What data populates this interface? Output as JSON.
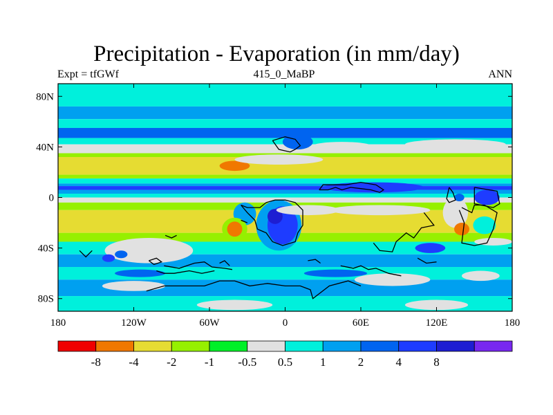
{
  "title": "Precipitation - Evaporation (in mm/day)",
  "subtitle_left": "Expt = tfGWf",
  "subtitle_center": "415_0_MaBP",
  "subtitle_right": "ANN",
  "map": {
    "projection": "cylindrical-equidistant",
    "lon_range": [
      -180,
      180
    ],
    "lat_range": [
      -90,
      90
    ],
    "x_ticks": [
      {
        "value": -180,
        "label": "180"
      },
      {
        "value": -120,
        "label": "120W"
      },
      {
        "value": -60,
        "label": "60W"
      },
      {
        "value": 0,
        "label": "0"
      },
      {
        "value": 60,
        "label": "60E"
      },
      {
        "value": 120,
        "label": "120E"
      },
      {
        "value": 180,
        "label": "180"
      }
    ],
    "y_ticks": [
      {
        "value": 80,
        "label": "80N"
      },
      {
        "value": 40,
        "label": "40N"
      },
      {
        "value": 0,
        "label": "0"
      },
      {
        "value": -40,
        "label": "40S"
      },
      {
        "value": -80,
        "label": "80S"
      }
    ],
    "zonal_bands": [
      {
        "lat": [
          72,
          90
        ],
        "color": "#00f0dc"
      },
      {
        "lat": [
          62,
          72
        ],
        "color": "#00a0f0"
      },
      {
        "lat": [
          55,
          62
        ],
        "color": "#00f0dc"
      },
      {
        "lat": [
          47,
          55
        ],
        "color": "#0064f0"
      },
      {
        "lat": [
          42,
          47
        ],
        "color": "#00f0dc"
      },
      {
        "lat": [
          35,
          42
        ],
        "color": "#e1e1e1"
      },
      {
        "lat": [
          32,
          35
        ],
        "color": "#96f000"
      },
      {
        "lat": [
          18,
          32
        ],
        "color": "#e6dc32"
      },
      {
        "lat": [
          15,
          18
        ],
        "color": "#96f000"
      },
      {
        "lat": [
          11,
          15
        ],
        "color": "#00f0dc"
      },
      {
        "lat": [
          9,
          11
        ],
        "color": "#00a0f0"
      },
      {
        "lat": [
          6,
          9
        ],
        "color": "#1e3cff"
      },
      {
        "lat": [
          3,
          6
        ],
        "color": "#00a0f0"
      },
      {
        "lat": [
          0,
          3
        ],
        "color": "#00f0dc"
      },
      {
        "lat": [
          -4,
          0
        ],
        "color": "#e1e1e1"
      },
      {
        "lat": [
          -10,
          -4
        ],
        "color": "#96f000"
      },
      {
        "lat": [
          -28,
          -10
        ],
        "color": "#e6dc32"
      },
      {
        "lat": [
          -35,
          -28
        ],
        "color": "#96f000"
      },
      {
        "lat": [
          -45,
          -35
        ],
        "color": "#00f0dc"
      },
      {
        "lat": [
          -55,
          -45
        ],
        "color": "#00a0f0"
      },
      {
        "lat": [
          -65,
          -55
        ],
        "color": "#00f0dc"
      },
      {
        "lat": [
          -78,
          -65
        ],
        "color": "#00a0f0"
      },
      {
        "lat": [
          -90,
          -78
        ],
        "color": "#00f0dc"
      }
    ],
    "regions": [
      {
        "kind": "ellipse",
        "lon": -108,
        "lat": -42,
        "rlon": 35,
        "rlat": 10,
        "color": "#e1e1e1"
      },
      {
        "kind": "ellipse",
        "lon": -40,
        "lat": 25,
        "rlon": 12,
        "rlat": 4,
        "color": "#f07800"
      },
      {
        "kind": "ellipse",
        "lon": -5,
        "lat": 30,
        "rlon": 35,
        "rlat": 4,
        "color": "#e1e1e1"
      },
      {
        "kind": "ellipse",
        "lon": 10,
        "lat": 44,
        "rlon": 12,
        "rlat": 6,
        "color": "#0064f0"
      },
      {
        "kind": "ellipse",
        "lon": 45,
        "lat": 40,
        "rlon": 25,
        "rlat": 4,
        "color": "#e1e1e1"
      },
      {
        "kind": "ellipse",
        "lon": 135,
        "lat": 42,
        "rlon": 40,
        "rlat": 4,
        "color": "#e1e1e1"
      },
      {
        "kind": "ellipse",
        "lon": 70,
        "lat": 8,
        "rlon": 40,
        "rlat": 4,
        "color": "#1e3cff"
      },
      {
        "kind": "ellipse",
        "lon": -5,
        "lat": -22,
        "rlon": 18,
        "rlat": 20,
        "color": "#00a0f0"
      },
      {
        "kind": "ellipse",
        "lon": -2,
        "lat": -22,
        "rlon": 12,
        "rlat": 15,
        "color": "#1e3cff"
      },
      {
        "kind": "ellipse",
        "lon": -8,
        "lat": -15,
        "rlon": 6,
        "rlat": 6,
        "color": "#1e1ed2"
      },
      {
        "kind": "ellipse",
        "lon": -32,
        "lat": -13,
        "rlon": 9,
        "rlat": 9,
        "color": "#00a0f0"
      },
      {
        "kind": "ellipse",
        "lon": -40,
        "lat": -25,
        "rlon": 10,
        "rlat": 9,
        "color": "#96f000"
      },
      {
        "kind": "ellipse",
        "lon": -40,
        "lat": -25,
        "rlon": 6,
        "rlat": 6,
        "color": "#f07800"
      },
      {
        "kind": "ellipse",
        "lon": 18,
        "lat": -10,
        "rlon": 25,
        "rlat": 4,
        "color": "#e1e1e1"
      },
      {
        "kind": "ellipse",
        "lon": 75,
        "lat": -10,
        "rlon": 40,
        "rlat": 4,
        "color": "#e1e1e1"
      },
      {
        "kind": "ellipse",
        "lon": 135,
        "lat": -12,
        "rlon": 10,
        "rlat": 12,
        "color": "#e1e1e1"
      },
      {
        "kind": "ellipse",
        "lon": 138,
        "lat": 0,
        "rlon": 4,
        "rlat": 3,
        "color": "#0064f0"
      },
      {
        "kind": "ellipse",
        "lon": 160,
        "lat": 0,
        "rlon": 10,
        "rlat": 6,
        "color": "#1e3cff"
      },
      {
        "kind": "ellipse",
        "lon": 158,
        "lat": -22,
        "rlon": 9,
        "rlat": 7,
        "color": "#00f0dc"
      },
      {
        "kind": "ellipse",
        "lon": 140,
        "lat": -25,
        "rlon": 6,
        "rlat": 5,
        "color": "#f07800"
      },
      {
        "kind": "ellipse",
        "lon": 115,
        "lat": -40,
        "rlon": 12,
        "rlat": 4,
        "color": "#1e3cff"
      },
      {
        "kind": "ellipse",
        "lon": 165,
        "lat": -35,
        "rlon": 15,
        "rlat": 3,
        "color": "#e1e1e1"
      },
      {
        "kind": "ellipse",
        "lon": -140,
        "lat": -48,
        "rlon": 5,
        "rlat": 3,
        "color": "#1e3cff"
      },
      {
        "kind": "ellipse",
        "lon": -130,
        "lat": -45,
        "rlon": 5,
        "rlat": 3,
        "color": "#0064f0"
      },
      {
        "kind": "ellipse",
        "lon": -115,
        "lat": -60,
        "rlon": 20,
        "rlat": 3,
        "color": "#0064f0"
      },
      {
        "kind": "ellipse",
        "lon": 40,
        "lat": -60,
        "rlon": 25,
        "rlat": 3,
        "color": "#0064f0"
      },
      {
        "kind": "ellipse",
        "lon": 85,
        "lat": -65,
        "rlon": 30,
        "rlat": 5,
        "color": "#e1e1e1"
      },
      {
        "kind": "ellipse",
        "lon": 155,
        "lat": -62,
        "rlon": 15,
        "rlat": 4,
        "color": "#e1e1e1"
      },
      {
        "kind": "ellipse",
        "lon": -120,
        "lat": -70,
        "rlon": 25,
        "rlat": 4,
        "color": "#e1e1e1"
      },
      {
        "kind": "ellipse",
        "lon": 120,
        "lat": -85,
        "rlon": 25,
        "rlat": 4,
        "color": "#e1e1e1"
      },
      {
        "kind": "ellipse",
        "lon": -40,
        "lat": -85,
        "rlon": 30,
        "rlat": 4,
        "color": "#e1e1e1"
      }
    ],
    "coastlines": [
      [
        [
          -35,
          -6
        ],
        [
          -30,
          -8
        ],
        [
          -20,
          -8
        ],
        [
          -15,
          -4
        ],
        [
          -8,
          -2
        ],
        [
          0,
          -2
        ],
        [
          8,
          -4
        ],
        [
          14,
          -10
        ],
        [
          14,
          -22
        ],
        [
          10,
          -28
        ],
        [
          8,
          -35
        ],
        [
          -2,
          -38
        ],
        [
          -10,
          -35
        ],
        [
          -15,
          -28
        ],
        [
          -22,
          -25
        ],
        [
          -24,
          -18
        ],
        [
          -30,
          -12
        ],
        [
          -35,
          -6
        ]
      ],
      [
        [
          -35,
          -18
        ],
        [
          -30,
          -20
        ]
      ],
      [
        [
          -10,
          45
        ],
        [
          0,
          48
        ],
        [
          8,
          46
        ],
        [
          12,
          41
        ],
        [
          8,
          38
        ],
        [
          4,
          36
        ],
        [
          -5,
          38
        ],
        [
          -10,
          45
        ]
      ],
      [
        [
          27,
          6
        ],
        [
          34,
          6
        ],
        [
          40,
          8
        ],
        [
          45,
          6
        ],
        [
          52,
          8
        ],
        [
          60,
          7
        ],
        [
          68,
          6
        ],
        [
          75,
          4
        ],
        [
          78,
          6
        ],
        [
          72,
          10
        ],
        [
          60,
          12
        ],
        [
          48,
          10
        ],
        [
          38,
          10
        ],
        [
          30,
          10
        ],
        [
          27,
          6
        ]
      ],
      [
        [
          130,
          8
        ],
        [
          128,
          -1
        ],
        [
          130,
          -4
        ],
        [
          135,
          -2
        ],
        [
          133,
          4
        ],
        [
          130,
          8
        ]
      ],
      [
        [
          150,
          8
        ],
        [
          150,
          -5
        ],
        [
          165,
          -8
        ],
        [
          170,
          -5
        ],
        [
          168,
          5
        ],
        [
          150,
          8
        ]
      ],
      [
        [
          138,
          -10
        ],
        [
          142,
          -20
        ],
        [
          140,
          -36
        ],
        [
          150,
          -38
        ],
        [
          160,
          -36
        ],
        [
          165,
          -25
        ],
        [
          168,
          -12
        ],
        [
          158,
          -6
        ],
        [
          150,
          -6
        ],
        [
          148,
          -12
        ],
        [
          140,
          -8
        ]
      ],
      [
        [
          110,
          -12
        ],
        [
          118,
          -22
        ],
        [
          108,
          -24
        ],
        [
          102,
          -32
        ],
        [
          96,
          -28
        ],
        [
          88,
          -35
        ],
        [
          85,
          -43
        ],
        [
          75,
          -42
        ],
        [
          70,
          -36
        ]
      ],
      [
        [
          -163,
          -42
        ],
        [
          -158,
          -47
        ],
        [
          -153,
          -42
        ]
      ],
      [
        [
          -108,
          -50
        ],
        [
          -104,
          -53
        ],
        [
          -98,
          -51
        ],
        [
          -102,
          -48
        ],
        [
          -108,
          -50
        ]
      ],
      [
        [
          -96,
          -54
        ],
        [
          -84,
          -56
        ],
        [
          -72,
          -52
        ],
        [
          -64,
          -51
        ],
        [
          -58,
          -55
        ],
        [
          -48,
          -56
        ],
        [
          -42,
          -57
        ]
      ],
      [
        [
          -102,
          -58
        ],
        [
          -96,
          -60
        ],
        [
          -88,
          -60
        ],
        [
          -76,
          -58
        ],
        [
          -66,
          -60
        ],
        [
          -56,
          -58
        ]
      ],
      [
        [
          -110,
          -74
        ],
        [
          -96,
          -70
        ],
        [
          -82,
          -70
        ],
        [
          -64,
          -70
        ],
        [
          -52,
          -66
        ],
        [
          -40,
          -66
        ],
        [
          -28,
          -70
        ],
        [
          -14,
          -68
        ],
        [
          0,
          -70
        ],
        [
          12,
          -70
        ],
        [
          20,
          -73
        ],
        [
          22,
          -80
        ],
        [
          35,
          -70
        ],
        [
          50,
          -66
        ],
        [
          60,
          -70
        ]
      ],
      [
        [
          -52,
          -52
        ],
        [
          -48,
          -50
        ],
        [
          -44,
          -54
        ]
      ],
      [
        [
          44,
          -54
        ],
        [
          54,
          -56
        ],
        [
          60,
          -54
        ],
        [
          66,
          -57
        ],
        [
          72,
          -56
        ],
        [
          82,
          -60
        ],
        [
          92,
          -62
        ]
      ],
      [
        [
          18,
          -50
        ],
        [
          24,
          -49
        ],
        [
          28,
          -52
        ]
      ],
      [
        [
          105,
          -48
        ],
        [
          112,
          -52
        ],
        [
          120,
          -51
        ]
      ],
      [
        [
          -95,
          -30
        ],
        [
          -90,
          -32
        ],
        [
          -86,
          -30
        ]
      ]
    ]
  },
  "colorbar": {
    "colors": [
      "#f00000",
      "#f07800",
      "#e6dc32",
      "#96f000",
      "#00f028",
      "#e1e1e1",
      "#00f0dc",
      "#00a0f0",
      "#0064f0",
      "#1e3cff",
      "#1e1ed2",
      "#7828f0"
    ],
    "labels": [
      "-8",
      "-4",
      "-2",
      "-1",
      "-0.5",
      "0.5",
      "1",
      "2",
      "4",
      "8"
    ]
  }
}
